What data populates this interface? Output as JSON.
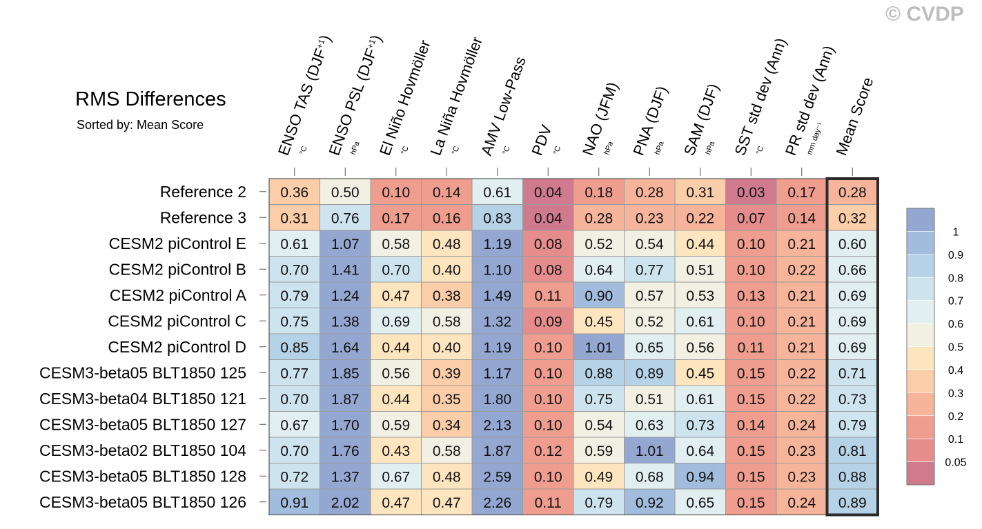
{
  "header": {
    "title": "RMS Differences",
    "subtitle": "Sorted by: Mean Score",
    "watermark": "© CVDP"
  },
  "chart_data": {
    "type": "heatmap",
    "title": "RMS Differences",
    "subtitle": "Sorted by: Mean Score",
    "columns": [
      {
        "label": "ENSO TAS (DJF",
        "sup": "+1",
        "tail": ")",
        "unit": "°C"
      },
      {
        "label": "ENSO PSL (DJF",
        "sup": "+1",
        "tail": ")",
        "unit": "hPa"
      },
      {
        "label": "El Niño Hovmöller",
        "sup": "",
        "tail": "",
        "unit": "°C"
      },
      {
        "label": "La Niña Hovmöller",
        "sup": "",
        "tail": "",
        "unit": "°C"
      },
      {
        "label": "AMV Low-Pass",
        "sup": "",
        "tail": "",
        "unit": "°C"
      },
      {
        "label": "PDV",
        "sup": "",
        "tail": "",
        "unit": "°C"
      },
      {
        "label": "NAO (JFM)",
        "sup": "",
        "tail": "",
        "unit": "hPa"
      },
      {
        "label": "PNA (DJF)",
        "sup": "",
        "tail": "",
        "unit": "hPa"
      },
      {
        "label": "SAM (DJF)",
        "sup": "",
        "tail": "",
        "unit": "hPa"
      },
      {
        "label": "SST std dev (Ann)",
        "sup": "",
        "tail": "",
        "unit": "°C"
      },
      {
        "label": "PR std dev (Ann)",
        "sup": "",
        "tail": "",
        "unit": "mm day⁻¹"
      },
      {
        "label": "Mean Score",
        "sup": "",
        "tail": "",
        "unit": ""
      }
    ],
    "rows": [
      "Reference 2",
      "Reference 3",
      "CESM2 piControl E",
      "CESM2 piControl B",
      "CESM2 piControl A",
      "CESM2 piControl C",
      "CESM2 piControl D",
      "CESM3-beta05 BLT1850 125",
      "CESM3-beta04 BLT1850 121",
      "CESM3-beta05 BLT1850 127",
      "CESM3-beta02 BLT1850 104",
      "CESM3-beta05 BLT1850 128",
      "CESM3-beta05 BLT1850 126"
    ],
    "values": [
      [
        0.36,
        0.5,
        0.1,
        0.14,
        0.61,
        0.04,
        0.18,
        0.28,
        0.31,
        0.03,
        0.17,
        0.28
      ],
      [
        0.31,
        0.76,
        0.17,
        0.16,
        0.83,
        0.04,
        0.28,
        0.23,
        0.22,
        0.07,
        0.14,
        0.32
      ],
      [
        0.61,
        1.07,
        0.58,
        0.48,
        1.19,
        0.08,
        0.52,
        0.54,
        0.44,
        0.1,
        0.21,
        0.6
      ],
      [
        0.7,
        1.41,
        0.7,
        0.4,
        1.1,
        0.08,
        0.64,
        0.77,
        0.51,
        0.1,
        0.22,
        0.66
      ],
      [
        0.79,
        1.24,
        0.47,
        0.38,
        1.49,
        0.11,
        0.9,
        0.57,
        0.53,
        0.13,
        0.21,
        0.69
      ],
      [
        0.75,
        1.38,
        0.69,
        0.58,
        1.32,
        0.09,
        0.45,
        0.52,
        0.61,
        0.1,
        0.21,
        0.69
      ],
      [
        0.85,
        1.64,
        0.44,
        0.4,
        1.19,
        0.1,
        1.01,
        0.65,
        0.56,
        0.11,
        0.21,
        0.69
      ],
      [
        0.77,
        1.85,
        0.56,
        0.39,
        1.17,
        0.1,
        0.88,
        0.89,
        0.45,
        0.15,
        0.22,
        0.71
      ],
      [
        0.7,
        1.87,
        0.44,
        0.35,
        1.8,
        0.1,
        0.75,
        0.51,
        0.61,
        0.15,
        0.22,
        0.73
      ],
      [
        0.67,
        1.7,
        0.59,
        0.34,
        2.13,
        0.1,
        0.54,
        0.63,
        0.73,
        0.14,
        0.24,
        0.79
      ],
      [
        0.7,
        1.76,
        0.43,
        0.58,
        1.87,
        0.12,
        0.59,
        1.01,
        0.64,
        0.15,
        0.23,
        0.81
      ],
      [
        0.72,
        1.37,
        0.67,
        0.48,
        2.59,
        0.1,
        0.49,
        0.68,
        0.94,
        0.15,
        0.23,
        0.88
      ],
      [
        0.91,
        2.02,
        0.47,
        0.47,
        2.26,
        0.11,
        0.79,
        0.92,
        0.65,
        0.15,
        0.24,
        0.89
      ]
    ],
    "highlighted_column": "Mean Score",
    "colorbar": {
      "tick_labels": [
        "1",
        "0.9",
        "0.8",
        "0.7",
        "0.6",
        "0.5",
        "0.4",
        "0.3",
        "0.2",
        "0.1",
        "0.05"
      ],
      "bounds": [
        0.03,
        0.05,
        0.1,
        0.2,
        0.3,
        0.4,
        0.5,
        0.6,
        0.7,
        0.8,
        0.9,
        1.0,
        3.0
      ],
      "colors": [
        "#cf7a8d",
        "#e58d8d",
        "#ee9d8e",
        "#f6b49b",
        "#fbcda8",
        "#fde5bf",
        "#f2efe3",
        "#e2eff1",
        "#cde4ee",
        "#b6d2e6",
        "#a1bcdc",
        "#94a7d1"
      ]
    }
  }
}
